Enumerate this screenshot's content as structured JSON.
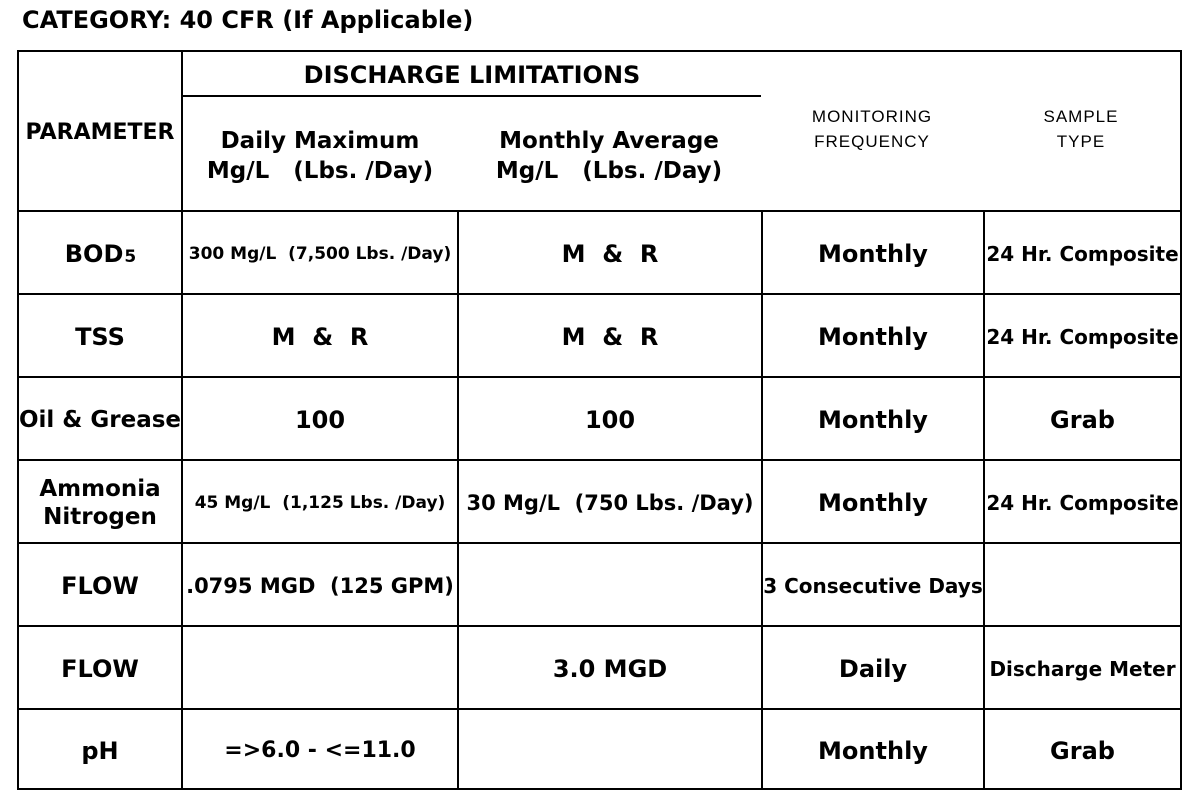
{
  "title": "CATEGORY: 40 CFR (If Applicable)",
  "header": {
    "parameter": "PARAMETER",
    "discharge": "DISCHARGE LIMITATIONS",
    "daily_line1": "Daily Maximum",
    "daily_line2": "Mg/L   (Lbs. /Day)",
    "monthly_line1": "Monthly Average",
    "monthly_line2": "Mg/L   (Lbs. /Day)",
    "monitoring_line1": "MONITORING",
    "monitoring_line2": "FREQUENCY",
    "sample_line1": "SAMPLE",
    "sample_line2": "TYPE"
  },
  "rows": [
    {
      "param": "BOD",
      "param_sub": "5",
      "daily": "300 Mg/L  (7,500 Lbs. /Day)",
      "monthly": "M  &  R",
      "freq": "Monthly",
      "sample": "24 Hr. Composite"
    },
    {
      "param": "TSS",
      "daily": "M  &  R",
      "monthly": "M  &  R",
      "freq": "Monthly",
      "sample": "24 Hr. Composite"
    },
    {
      "param": "Oil & Grease",
      "daily": "100",
      "monthly": "100",
      "freq": "Monthly",
      "sample": "Grab"
    },
    {
      "param_line1": "Ammonia",
      "param_line2": "Nitrogen",
      "daily": "45 Mg/L  (1,125 Lbs. /Day)",
      "monthly": "30 Mg/L  (750 Lbs. /Day)",
      "freq": "Monthly",
      "sample": "24 Hr. Composite"
    },
    {
      "param": "FLOW",
      "daily": ".0795 MGD  (125 GPM)",
      "monthly": "",
      "freq": "3 Consecutive Days",
      "sample": ""
    },
    {
      "param": "FLOW",
      "daily": "",
      "monthly": "3.0 MGD",
      "freq": "Daily",
      "sample": "Discharge Meter"
    },
    {
      "param": "pH",
      "daily": "=>6.0 - <=11.0",
      "monthly": "",
      "freq": "Monthly",
      "sample": "Grab"
    }
  ]
}
